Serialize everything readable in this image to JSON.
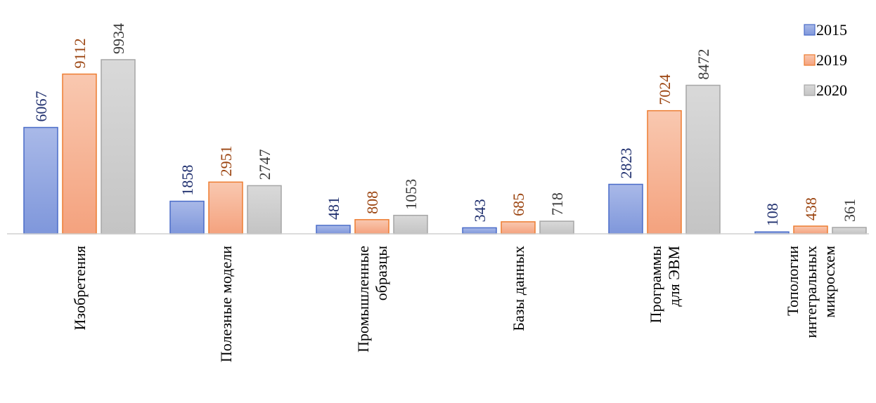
{
  "chart_data": {
    "type": "bar",
    "categories": [
      [
        "Изобретения"
      ],
      [
        "Полезные модели"
      ],
      [
        "Промышленные",
        "образцы"
      ],
      [
        "Базы данных"
      ],
      [
        "Программы",
        "для  ЭВМ"
      ],
      [
        "Топологии",
        "интегральных",
        "микросхем"
      ]
    ],
    "series": [
      {
        "name": "2015",
        "values": [
          6067,
          1858,
          481,
          343,
          2823,
          108
        ],
        "fill_top": "#a9b9e8",
        "fill_bottom": "#7f97db",
        "stroke": "#4a6cc8",
        "label_color": "#1f2f6e"
      },
      {
        "name": "2019",
        "values": [
          9112,
          2951,
          808,
          685,
          7024,
          438
        ],
        "fill_top": "#f9c8b0",
        "fill_bottom": "#f4a27e",
        "stroke": "#ed7d31",
        "label_color": "#9b4410"
      },
      {
        "name": "2020",
        "values": [
          9934,
          2747,
          1053,
          718,
          8472,
          361
        ],
        "fill_top": "#d9d9d9",
        "fill_bottom": "#c4c4c4",
        "stroke": "#a6a6a6",
        "label_color": "#3a3a3a"
      }
    ],
    "ylim": [
      0,
      10000
    ],
    "legend_position": "top-right",
    "title": "",
    "xlabel": "",
    "ylabel": ""
  }
}
